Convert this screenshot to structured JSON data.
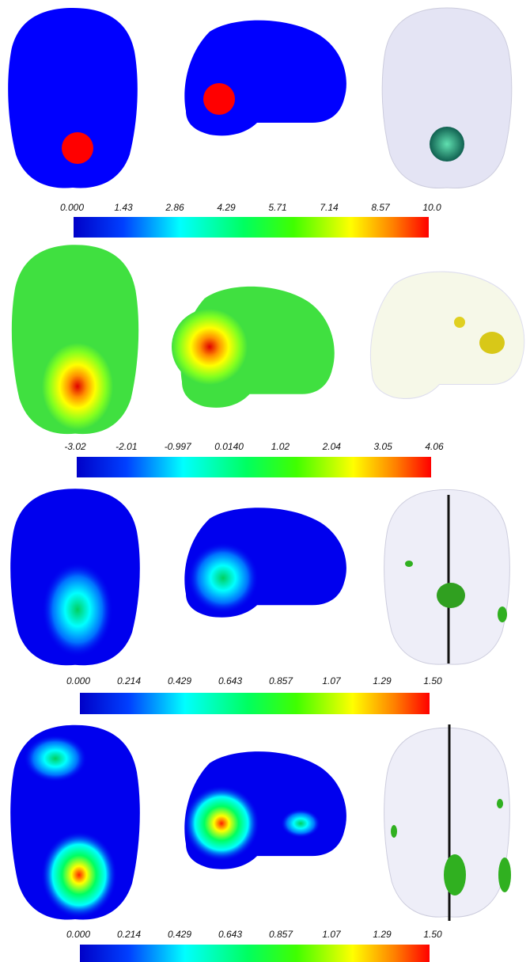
{
  "panels": [
    {
      "colorbar": {
        "ticks": [
          "0.000",
          "1.43",
          "2.86",
          "4.29",
          "5.71",
          "7.14",
          "8.57",
          "10.0"
        ]
      }
    },
    {
      "colorbar": {
        "ticks": [
          "-3.02",
          "-2.01",
          "-0.997",
          "0.0140",
          "1.02",
          "2.04",
          "3.05",
          "4.06"
        ]
      }
    },
    {
      "colorbar": {
        "ticks": [
          "0.000",
          "0.214",
          "0.429",
          "0.643",
          "0.857",
          "1.07",
          "1.29",
          "1.50"
        ]
      }
    },
    {
      "colorbar": {
        "ticks": [
          "0.000",
          "0.214",
          "0.429",
          "0.643",
          "0.857",
          "1.07",
          "1.29",
          "1.50"
        ]
      }
    }
  ]
}
